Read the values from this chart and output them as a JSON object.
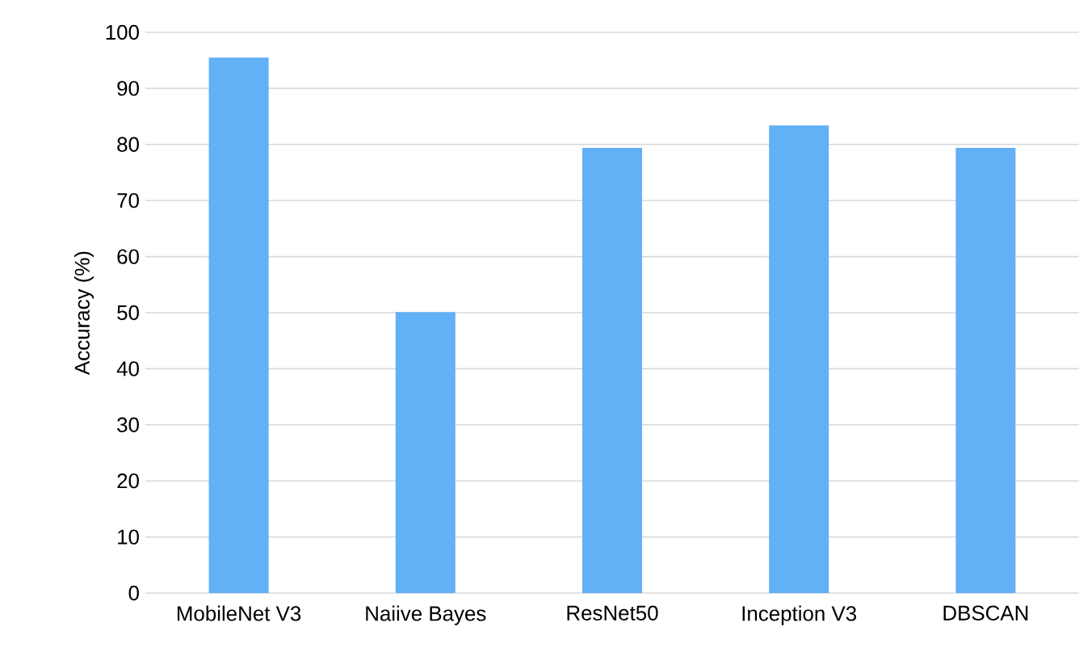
{
  "chart_data": {
    "type": "bar",
    "ylabel": "Accuracy (%)",
    "categories": [
      "MobileNet V3",
      "Naiive Bayes",
      "ResNet50",
      "Inception V3",
      "DBSCAN"
    ],
    "values": [
      95.5,
      50.1,
      79.4,
      83.4,
      79.4
    ],
    "color": "#62b0f5",
    "ylim": [
      0,
      100
    ],
    "yticks": [
      0,
      10,
      20,
      30,
      40,
      50,
      60,
      70,
      80,
      90,
      100
    ],
    "grid": "y"
  }
}
